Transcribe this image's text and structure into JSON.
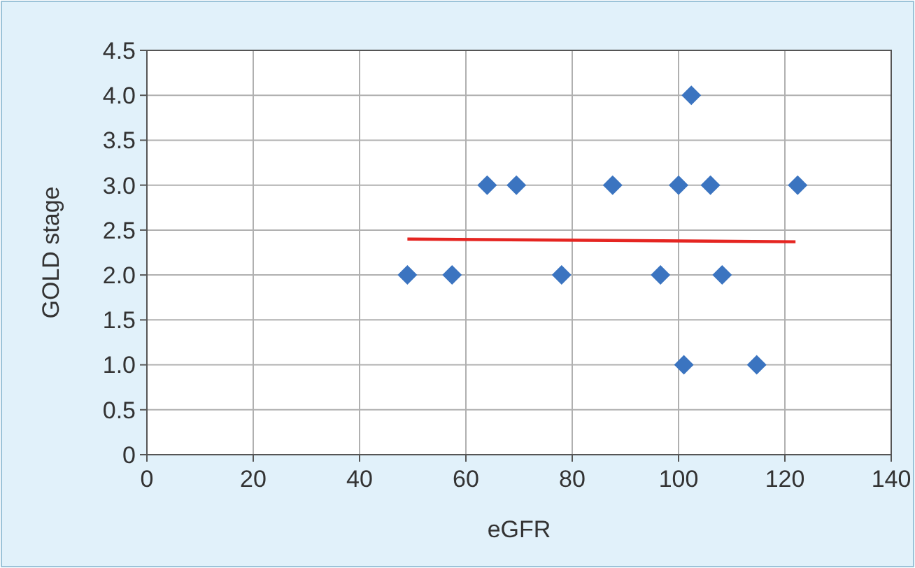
{
  "chart_data": {
    "type": "scatter",
    "xlabel": "eGFR",
    "ylabel": "GOLD stage",
    "xlim": [
      0,
      140
    ],
    "xticks": [
      0,
      20,
      40,
      60,
      80,
      100,
      120,
      140
    ],
    "ylim": [
      0,
      4.5
    ],
    "yticks": [
      {
        "value": 0,
        "label": "0"
      },
      {
        "value": 0.5,
        "label": "0.5"
      },
      {
        "value": 1,
        "label": "1.0"
      },
      {
        "value": 1.5,
        "label": "1.5"
      },
      {
        "value": 2,
        "label": "2.0"
      },
      {
        "value": 2.5,
        "label": "2.5"
      },
      {
        "value": 3,
        "label": "3.0"
      },
      {
        "value": 3.5,
        "label": "3.5"
      },
      {
        "value": 4,
        "label": "4.0"
      },
      {
        "value": 4.5,
        "label": "4.5"
      }
    ],
    "grid": true,
    "series": [
      {
        "color": "#3b74c0",
        "marker": "diamond",
        "x": [
          49,
          57.4,
          64,
          69.5,
          78,
          87.6,
          96.6,
          100,
          101,
          102.4,
          106,
          108.2,
          114.7,
          122.4
        ],
        "values": [
          2,
          2,
          3,
          3,
          2,
          3,
          2,
          3,
          1,
          4,
          3,
          2,
          1,
          3
        ]
      },
      {
        "type": "line",
        "color": "#e52521",
        "line_style": "solid",
        "marker": "none",
        "x": [
          49,
          122
        ],
        "values": [
          2.4,
          2.37
        ]
      }
    ]
  }
}
